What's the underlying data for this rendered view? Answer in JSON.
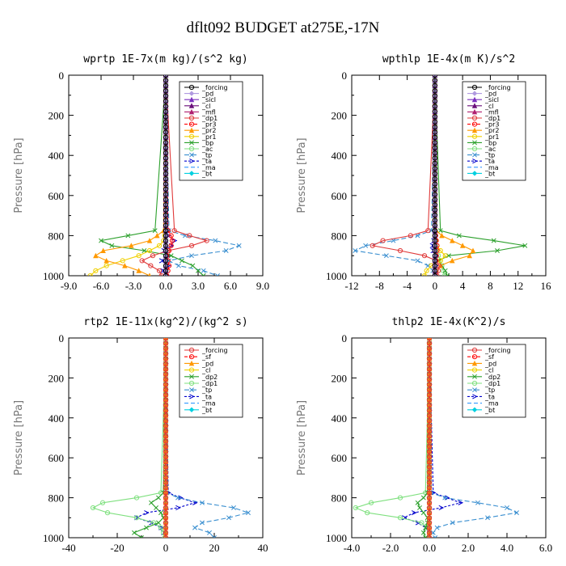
{
  "title": "dflt092  BUDGET at275E,-17N",
  "chart_data": [
    {
      "type": "line",
      "title": "wprtp  1E-7x(m kg)/(s^2 kg)",
      "ylabel": "Pressure [hPa]",
      "xlim": [
        -9,
        9
      ],
      "ylim": [
        1000,
        0
      ],
      "xticks": [
        "-9.0",
        "-6.0",
        "-3.0",
        "0.0",
        "3.0",
        "6.0",
        "9.0"
      ],
      "yticks": [
        "0",
        "200",
        "400",
        "600",
        "800",
        "1000"
      ],
      "legend": "top-right",
      "y": [
        0,
        775,
        800,
        825,
        850,
        875,
        900,
        925,
        950,
        975,
        1000
      ],
      "series": [
        {
          "name": "_forcing",
          "color": "#000000",
          "marker": "circle",
          "dash": "",
          "values": [
            0,
            0,
            0,
            0,
            0,
            0,
            0,
            0,
            0,
            0,
            0
          ]
        },
        {
          "name": "_pd",
          "color": "#b09ae0",
          "marker": "diamond",
          "dash": "",
          "values": [
            0,
            0,
            0,
            0,
            0,
            0,
            0,
            0,
            0,
            0,
            0
          ]
        },
        {
          "name": "_sicl",
          "color": "#7b2fbf",
          "marker": "triangle",
          "dash": "",
          "values": [
            0,
            0,
            0,
            0,
            0,
            0,
            0,
            0,
            0,
            0,
            0
          ]
        },
        {
          "name": "_cl",
          "color": "#6a0e7a",
          "marker": "triangle",
          "dash": "",
          "values": [
            0,
            0,
            0,
            0,
            0,
            0,
            0,
            0,
            0,
            0,
            0
          ]
        },
        {
          "name": "_mfl",
          "color": "#b02070",
          "marker": "triangle",
          "dash": "",
          "values": [
            0,
            0,
            0,
            0,
            0,
            0,
            0,
            0,
            0,
            0,
            0
          ]
        },
        {
          "name": "_dp1",
          "color": "#e03a3a",
          "marker": "circle",
          "dash": "",
          "values": [
            0,
            0.8,
            2.2,
            3.8,
            2.4,
            0.2,
            -1.2,
            -2.2,
            -1.4,
            -0.6,
            -0.4
          ]
        },
        {
          "name": "_pr3",
          "color": "#ff0000",
          "marker": "circle",
          "dash": "4,2",
          "values": [
            0,
            0.2,
            0.5,
            0.6,
            0.5,
            0.3,
            0.1,
            0.2,
            0.3,
            0.2,
            0.1
          ]
        },
        {
          "name": "_pr2",
          "color": "#ff9900",
          "marker": "triangle",
          "dash": "",
          "values": [
            0,
            -0.2,
            -0.8,
            -1.5,
            -3.2,
            -5.8,
            -6.5,
            -5.5,
            -3.8,
            -2.5,
            -1.5
          ]
        },
        {
          "name": "_pr1",
          "color": "#f0d000",
          "marker": "circle",
          "dash": "",
          "values": [
            0,
            0,
            -0.1,
            -0.2,
            -0.6,
            -1.5,
            -2.5,
            -4.0,
            -5.5,
            -6.5,
            -7.0
          ]
        },
        {
          "name": "_bp",
          "color": "#2ca02c",
          "marker": "cross",
          "dash": "",
          "values": [
            0,
            -1.0,
            -3.5,
            -6.0,
            -5.0,
            -2.0,
            0.5,
            1.5,
            2.5,
            3.0,
            3.5
          ]
        },
        {
          "name": "_ac",
          "color": "#7fe07f",
          "marker": "circle",
          "dash": "",
          "values": [
            0,
            0,
            0,
            0,
            0,
            0,
            0,
            0,
            0,
            0,
            0
          ]
        },
        {
          "name": "_tp",
          "color": "#3a8fd0",
          "marker": "cross",
          "dash": "6,3",
          "values": [
            0,
            0.3,
            1.8,
            4.6,
            6.8,
            5.6,
            2.4,
            0.3,
            1.2,
            3.5,
            4.8
          ]
        },
        {
          "name": "_ta",
          "color": "#0000cc",
          "marker": "arrow",
          "dash": "3,2",
          "values": [
            0,
            0,
            0.2,
            0.8,
            0.5,
            -0.2,
            0.3,
            -0.4,
            0.2,
            -0.3,
            0.1
          ]
        },
        {
          "name": "_ma",
          "color": "#3399ff",
          "marker": "none",
          "dash": "5,3",
          "values": [
            0,
            0,
            0,
            0,
            0,
            0,
            0,
            0,
            0,
            0,
            0
          ]
        },
        {
          "name": "_bt",
          "color": "#00d0e0",
          "marker": "diamond",
          "dash": "",
          "values": [
            0,
            0,
            0,
            0,
            0,
            0,
            0,
            0,
            0,
            0,
            0
          ]
        }
      ]
    },
    {
      "type": "line",
      "title": "wpthlp  1E-4x(m K)/s^2",
      "ylabel": "Pressure [hPa]",
      "xlim": [
        -12,
        16
      ],
      "ylim": [
        1000,
        0
      ],
      "xticks": [
        "-12",
        "-8",
        "-4",
        "0",
        "4",
        "8",
        "12",
        "16"
      ],
      "yticks": [
        "0",
        "200",
        "400",
        "600",
        "800",
        "1000"
      ],
      "legend": "top-right",
      "y": [
        0,
        775,
        800,
        825,
        850,
        875,
        900,
        925,
        950,
        975,
        1000
      ],
      "series": [
        {
          "name": "_forcing",
          "color": "#000000",
          "marker": "circle",
          "dash": "",
          "values": [
            0,
            0,
            0,
            0,
            0,
            0,
            0,
            0,
            0,
            0,
            0
          ]
        },
        {
          "name": "_pd",
          "color": "#b09ae0",
          "marker": "diamond",
          "dash": "",
          "values": [
            0,
            0,
            0,
            0,
            0,
            0,
            0,
            0,
            0,
            0,
            0
          ]
        },
        {
          "name": "_sicl",
          "color": "#7b2fbf",
          "marker": "triangle",
          "dash": "",
          "values": [
            0,
            0,
            0,
            0,
            0,
            0,
            0,
            0,
            0,
            0,
            0
          ]
        },
        {
          "name": "_cl",
          "color": "#6a0e7a",
          "marker": "triangle",
          "dash": "",
          "values": [
            0,
            0,
            0,
            0,
            0,
            0,
            0,
            0,
            0,
            0,
            0
          ]
        },
        {
          "name": "_mfl",
          "color": "#b02070",
          "marker": "triangle",
          "dash": "",
          "values": [
            0,
            0,
            0,
            0,
            0,
            0,
            0,
            0,
            0,
            0,
            0
          ]
        },
        {
          "name": "_dp1",
          "color": "#e03a3a",
          "marker": "circle",
          "dash": "",
          "values": [
            0,
            -1.0,
            -3.5,
            -7.5,
            -9.0,
            -5.0,
            -1.5,
            0.2,
            0.6,
            0.5,
            0.3
          ]
        },
        {
          "name": "_pr3",
          "color": "#ff0000",
          "marker": "circle",
          "dash": "4,2",
          "values": [
            0,
            0,
            0.1,
            0.2,
            0.3,
            0.3,
            0.2,
            0.1,
            0,
            0,
            0
          ]
        },
        {
          "name": "_pr2",
          "color": "#ff9900",
          "marker": "triangle",
          "dash": "",
          "values": [
            0,
            0.2,
            1.0,
            2.5,
            4.0,
            5.5,
            5.0,
            2.5,
            0.8,
            0.2,
            0
          ]
        },
        {
          "name": "_pr1",
          "color": "#f0d000",
          "marker": "circle",
          "dash": "",
          "values": [
            0,
            0,
            0,
            0.1,
            0.3,
            0.8,
            1.5,
            0.8,
            -0.5,
            -1.2,
            -1.5
          ]
        },
        {
          "name": "_bp",
          "color": "#2ca02c",
          "marker": "cross",
          "dash": "",
          "values": [
            0,
            0.8,
            3.5,
            8.5,
            13.0,
            9.0,
            2.0,
            0.5,
            1.0,
            1.5,
            1.8
          ]
        },
        {
          "name": "_ac",
          "color": "#7fe07f",
          "marker": "circle",
          "dash": "",
          "values": [
            0,
            0,
            0,
            0,
            0,
            0.2,
            0.5,
            0.8,
            1.0,
            1.2,
            1.4
          ]
        },
        {
          "name": "_tp",
          "color": "#3a8fd0",
          "marker": "cross",
          "dash": "6,3",
          "values": [
            0,
            -0.5,
            -2.5,
            -6.0,
            -10.0,
            -11.5,
            -7.0,
            -2.5,
            -1.0,
            -0.3,
            0
          ]
        },
        {
          "name": "_ta",
          "color": "#0000cc",
          "marker": "arrow",
          "dash": "3,2",
          "values": [
            0,
            0,
            0,
            -0.2,
            -0.4,
            -0.3,
            0.2,
            0.3,
            0.1,
            0,
            0
          ]
        },
        {
          "name": "_ma",
          "color": "#3399ff",
          "marker": "none",
          "dash": "5,3",
          "values": [
            0,
            0,
            0,
            0,
            0,
            0,
            0,
            0,
            0,
            0,
            0
          ]
        },
        {
          "name": "_bt",
          "color": "#00d0e0",
          "marker": "diamond",
          "dash": "",
          "values": [
            0,
            0,
            0,
            0,
            0,
            0,
            0,
            0,
            0,
            0,
            0
          ]
        }
      ]
    },
    {
      "type": "line",
      "title": "rtp2  1E-11x(kg^2)/(kg^2 s)",
      "ylabel": "Pressure [hPa]",
      "xlim": [
        -40,
        40
      ],
      "ylim": [
        1000,
        0
      ],
      "xticks": [
        "-40",
        "-20",
        "0",
        "20",
        "40"
      ],
      "yticks": [
        "0",
        "200",
        "400",
        "600",
        "800",
        "1000"
      ],
      "legend": "top-right",
      "y": [
        0,
        775,
        800,
        825,
        850,
        875,
        900,
        925,
        950,
        975,
        1000
      ],
      "series": [
        {
          "name": "_forcing",
          "color": "#e03a3a",
          "marker": "circle",
          "dash": "",
          "values": [
            0,
            0,
            0,
            0,
            0,
            0,
            0,
            0,
            0,
            0,
            0
          ]
        },
        {
          "name": "_sf",
          "color": "#ff0000",
          "marker": "circle",
          "dash": "4,2",
          "values": [
            0,
            0,
            0,
            0,
            0,
            0,
            0,
            0,
            0,
            0,
            0
          ]
        },
        {
          "name": "_pd",
          "color": "#ff9900",
          "marker": "triangle",
          "dash": "",
          "values": [
            0,
            0,
            0,
            0,
            0,
            0,
            0,
            0,
            0,
            0,
            0
          ]
        },
        {
          "name": "_cl",
          "color": "#f0d000",
          "marker": "circle",
          "dash": "",
          "values": [
            0,
            0,
            0,
            0,
            0,
            0,
            0,
            0,
            0,
            0,
            0
          ]
        },
        {
          "name": "_dp2",
          "color": "#2ca02c",
          "marker": "cross",
          "dash": "",
          "values": [
            0,
            -1.0,
            -3.0,
            -6.0,
            -4.0,
            -2.0,
            -1.0,
            -3.0,
            -8.0,
            -13.0,
            -10.0
          ]
        },
        {
          "name": "_dp1",
          "color": "#7fe07f",
          "marker": "circle",
          "dash": "",
          "values": [
            0,
            -2.0,
            -12.0,
            -26.0,
            -30.0,
            -24.0,
            -12.0,
            -5.0,
            -2.0,
            -1.0,
            -0.5
          ]
        },
        {
          "name": "_tp",
          "color": "#3a8fd0",
          "marker": "cross",
          "dash": "6,3",
          "values": [
            0,
            0.5,
            5.0,
            15.0,
            28.0,
            34.0,
            26.0,
            15.0,
            12.0,
            18.0,
            20.0
          ]
        },
        {
          "name": "_ta",
          "color": "#0000cc",
          "marker": "arrow",
          "dash": "3,2",
          "values": [
            0,
            1.0,
            6.0,
            12.0,
            5.0,
            -8.0,
            -12.0,
            -6.0,
            -2.0,
            -1.0,
            0
          ]
        },
        {
          "name": "_ma",
          "color": "#3399ff",
          "marker": "none",
          "dash": "5,3",
          "values": [
            0,
            0,
            0,
            0,
            0,
            0,
            0,
            0,
            0,
            0,
            0
          ]
        },
        {
          "name": "_bt",
          "color": "#00d0e0",
          "marker": "diamond",
          "dash": "",
          "values": [
            0,
            0,
            0,
            0,
            0,
            0,
            0,
            0,
            0,
            0,
            0
          ]
        }
      ]
    },
    {
      "type": "line",
      "title": "thlp2  1E-4x(K^2)/s",
      "ylabel": "Pressure [hPa]",
      "xlim": [
        -4,
        6
      ],
      "ylim": [
        1000,
        0
      ],
      "xticks": [
        "-4.0",
        "-2.0",
        "0.0",
        "2.0",
        "4.0",
        "6.0"
      ],
      "yticks": [
        "0",
        "200",
        "400",
        "600",
        "800",
        "1000"
      ],
      "legend": "top-right",
      "y": [
        0,
        775,
        800,
        825,
        850,
        875,
        900,
        925,
        950,
        975,
        1000
      ],
      "series": [
        {
          "name": "_forcing",
          "color": "#e03a3a",
          "marker": "circle",
          "dash": "",
          "values": [
            0,
            0,
            0,
            0,
            0,
            0,
            0,
            0,
            0,
            0,
            0
          ]
        },
        {
          "name": "_sf",
          "color": "#ff0000",
          "marker": "circle",
          "dash": "4,2",
          "values": [
            0,
            0,
            0,
            0,
            0,
            0,
            0,
            0,
            0,
            0,
            0
          ]
        },
        {
          "name": "_pd",
          "color": "#ff9900",
          "marker": "triangle",
          "dash": "",
          "values": [
            0,
            0,
            0,
            0,
            0,
            0,
            0,
            0,
            0,
            0,
            0
          ]
        },
        {
          "name": "_cl",
          "color": "#f0d000",
          "marker": "circle",
          "dash": "",
          "values": [
            0,
            0,
            0,
            0,
            0,
            0,
            0,
            0,
            0,
            0,
            0
          ]
        },
        {
          "name": "_dp2",
          "color": "#2ca02c",
          "marker": "cross",
          "dash": "",
          "values": [
            0,
            -0.1,
            -0.3,
            -0.6,
            -0.5,
            -0.3,
            -0.1,
            -0.1,
            -0.2,
            -0.3,
            -0.2
          ]
        },
        {
          "name": "_dp1",
          "color": "#7fe07f",
          "marker": "circle",
          "dash": "",
          "values": [
            0,
            -0.2,
            -1.5,
            -3.0,
            -3.8,
            -3.2,
            -1.5,
            -0.4,
            -0.1,
            0,
            0
          ]
        },
        {
          "name": "_tp",
          "color": "#3a8fd0",
          "marker": "cross",
          "dash": "6,3",
          "values": [
            0,
            0.1,
            0.8,
            2.5,
            4.0,
            4.5,
            3.0,
            1.2,
            0.4,
            0.2,
            0.3
          ]
        },
        {
          "name": "_ta",
          "color": "#0000cc",
          "marker": "arrow",
          "dash": "3,2",
          "values": [
            0,
            0.2,
            0.9,
            1.6,
            0.6,
            -0.8,
            -1.3,
            -0.6,
            -0.2,
            0,
            0
          ]
        },
        {
          "name": "_ma",
          "color": "#3399ff",
          "marker": "none",
          "dash": "5,3",
          "values": [
            0,
            0,
            0,
            0,
            0,
            0,
            0,
            0,
            0,
            0,
            0
          ]
        },
        {
          "name": "_bt",
          "color": "#00d0e0",
          "marker": "diamond",
          "dash": "",
          "values": [
            0,
            0,
            0,
            0,
            0,
            0,
            0,
            0,
            0,
            0,
            0
          ]
        }
      ]
    }
  ]
}
